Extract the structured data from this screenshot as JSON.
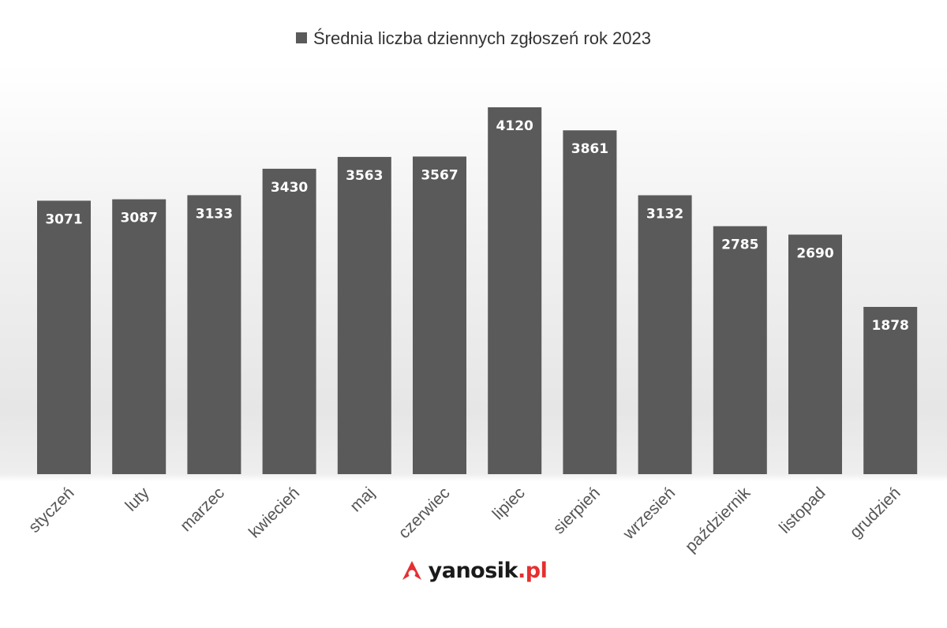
{
  "chart_data": {
    "type": "bar",
    "legend": "Średnia liczba dziennych zgłoszeń rok 2023",
    "legend_placement": "top-center",
    "grid": false,
    "categories": [
      "styczeń",
      "luty",
      "marzec",
      "kwiecień",
      "maj",
      "czerwiec",
      "lipiec",
      "sierpień",
      "wrzesień",
      "październik",
      "listopad",
      "grudzień"
    ],
    "series": [
      {
        "name": "Średnia liczba dziennych zgłoszeń rok 2023",
        "values": [
          3071,
          3087,
          3133,
          3430,
          3563,
          3567,
          4120,
          3861,
          3132,
          2785,
          2690,
          1878
        ]
      }
    ],
    "ylim": [
      0,
      4120
    ],
    "bar_color": "#5a5a5a",
    "label_color": "#ffffff"
  },
  "logo": {
    "brand": "yanosik",
    "tld": ".pl",
    "icon": "yanosik-logo-icon",
    "icon_color": "#e53030"
  }
}
